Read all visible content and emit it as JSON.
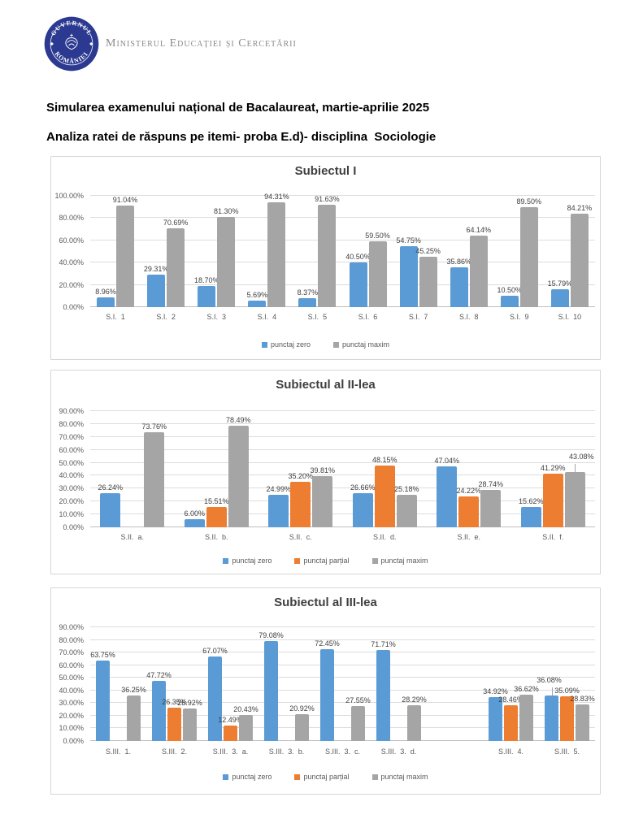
{
  "page": {
    "logo": {
      "top_text": "GUVERNUL",
      "bottom_text": "ROMÂNIEI"
    },
    "ministry": "Ministerul Educației și Cercetării",
    "title_line1": "Simularea examenului național de Bacalaureat, martie-aprilie 2025",
    "title_line2": "Analiza ratei de răspuns pe itemi- proba E.d)- disciplina  Sociologie"
  },
  "colors": {
    "punctaj_zero": "#5B9BD5",
    "punctaj_partial": "#ED7D31",
    "punctaj_maxim": "#A5A5A5",
    "logo_navy": "#2B3990",
    "grid": "#DCDCDC"
  },
  "chart_data": [
    {
      "type": "bar",
      "title": "Subiectul I",
      "xlabel": "",
      "ylabel": "",
      "grid": true,
      "legend_position": "bottom",
      "ylim": [
        0,
        100
      ],
      "ytick_step": 20,
      "categories": [
        "S.I.  1",
        "S.I.  2",
        "S.I.  3",
        "S.I.  4",
        "S.I.  5",
        "S.I.  6",
        "S.I.  7",
        "S.I.  8",
        "S.I.  9",
        "S.I.  10"
      ],
      "series": [
        {
          "name": "punctaj zero",
          "color": "#5B9BD5",
          "values": [
            8.96,
            29.31,
            18.7,
            5.69,
            8.37,
            40.5,
            54.75,
            35.86,
            10.5,
            15.79
          ]
        },
        {
          "name": "punctaj maxim",
          "color": "#A5A5A5",
          "values": [
            91.04,
            70.69,
            81.3,
            94.31,
            91.63,
            59.5,
            45.25,
            64.14,
            89.5,
            84.21
          ]
        }
      ],
      "label_offsets": {}
    },
    {
      "type": "bar",
      "title": "Subiectul al II-lea",
      "xlabel": "",
      "ylabel": "",
      "grid": true,
      "legend_position": "bottom",
      "ylim": [
        0,
        90
      ],
      "ytick_step": 10,
      "categories": [
        "S.II.  a.",
        "S.II.  b.",
        "S.II.  c.",
        "S.II.  d.",
        "S.II.  e.",
        "S.II.  f."
      ],
      "series": [
        {
          "name": "punctaj zero",
          "color": "#5B9BD5",
          "values": [
            26.24,
            6.0,
            24.99,
            26.66,
            47.04,
            15.62
          ]
        },
        {
          "name": "punctaj parțial",
          "color": "#ED7D31",
          "values": [
            null,
            15.51,
            35.2,
            48.15,
            24.22,
            41.29
          ]
        },
        {
          "name": "punctaj maxim",
          "color": "#A5A5A5",
          "values": [
            73.76,
            78.49,
            39.81,
            25.18,
            28.74,
            43.08
          ]
        }
      ],
      "label_offsets": {
        "2,5": {
          "dx": 8,
          "dy": -12,
          "leader": true
        }
      }
    },
    {
      "type": "bar",
      "title": "Subiectul al III-lea",
      "xlabel": "",
      "ylabel": "",
      "grid": true,
      "legend_position": "bottom",
      "ylim": [
        0,
        90
      ],
      "ytick_step": 10,
      "categories": [
        "S.III.  1.",
        "S.III.  2.",
        "S.III.  3.  a.",
        "S.III.  3.  b.",
        "S.III.  3.  c.",
        "S.III.  3.  d.",
        "",
        "S.III.  4.",
        "S.III.  5."
      ],
      "series": [
        {
          "name": "punctaj zero",
          "color": "#5B9BD5",
          "values": [
            63.75,
            47.72,
            67.07,
            79.08,
            72.45,
            71.71,
            null,
            34.92,
            36.08
          ]
        },
        {
          "name": "punctaj parțial",
          "color": "#ED7D31",
          "values": [
            null,
            26.35,
            12.49,
            null,
            null,
            null,
            null,
            28.46,
            35.09
          ]
        },
        {
          "name": "punctaj maxim",
          "color": "#A5A5A5",
          "values": [
            36.25,
            25.92,
            20.43,
            20.92,
            27.55,
            28.29,
            null,
            36.62,
            28.83
          ]
        }
      ],
      "label_offsets": {
        "0,8": {
          "dx": -3,
          "dy": -12,
          "leader": true
        }
      }
    }
  ]
}
